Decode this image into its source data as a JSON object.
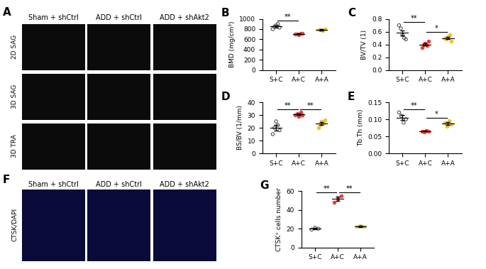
{
  "image_panels": [
    {
      "panel": "A",
      "columns": [
        "Sham + shCtrl",
        "ADD + shCtrl",
        "ADD + shAkt2"
      ],
      "rows": [
        "2D SAG",
        "3D SAG",
        "3D TRA"
      ]
    },
    {
      "panel": "F",
      "columns": [
        "Sham + shCtrl",
        "ADD + shCtrl",
        "ADD + shAkt2"
      ],
      "rows": [
        "CTSK/DAPI"
      ]
    }
  ],
  "chart_data": [
    {
      "type": "scatter",
      "panel": "B",
      "ylabel": "BMD (mg/cm³)",
      "categories": [
        "S+C",
        "A+C",
        "A+A"
      ],
      "values": [
        [
          800,
          850,
          870,
          900,
          830
        ],
        [
          700,
          700,
          690,
          710,
          720
        ],
        [
          780,
          790,
          770,
          800
        ]
      ],
      "means": [
        850,
        704,
        785
      ],
      "errors": [
        25,
        8,
        10
      ],
      "colors": [
        "#555555",
        "#e8403a",
        "#e8c531"
      ],
      "marker": "o",
      "ylim": [
        0,
        1000
      ],
      "yticks": [
        0,
        200,
        400,
        600,
        800,
        1000
      ],
      "significance": [
        {
          "between": [
            "S+C",
            "A+C"
          ],
          "label": "**"
        }
      ]
    },
    {
      "type": "scatter",
      "panel": "C",
      "ylabel": "BV/TV (1)",
      "categories": [
        "S+C",
        "A+C",
        "A+A"
      ],
      "values": [
        [
          0.7,
          0.65,
          0.55,
          0.5,
          0.48
        ],
        [
          0.35,
          0.4,
          0.42,
          0.38,
          0.45
        ],
        [
          0.5,
          0.48,
          0.52,
          0.55,
          0.45
        ]
      ],
      "means": [
        0.58,
        0.4,
        0.5
      ],
      "errors": [
        0.04,
        0.02,
        0.02
      ],
      "colors": [
        "#555555",
        "#e8403a",
        "#e8c531"
      ],
      "marker": "o",
      "ylim": [
        0,
        0.8
      ],
      "yticks": [
        {
          "value": 0,
          "label": "0.0"
        },
        0.2,
        0.4,
        0.6,
        0.8
      ],
      "significance": [
        {
          "between": [
            "S+C",
            "A+C"
          ],
          "label": "**"
        },
        {
          "between": [
            "A+C",
            "A+A"
          ],
          "label": "*"
        }
      ]
    },
    {
      "type": "scatter",
      "panel": "D",
      "ylabel": "BS/BV (1/mm)",
      "categories": [
        "S+C",
        "A+C",
        "A+A"
      ],
      "values": [
        [
          15,
          20,
          25,
          22,
          18
        ],
        [
          30,
          31,
          29,
          32,
          30
        ],
        [
          20,
          22,
          25,
          24,
          26
        ]
      ],
      "means": [
        20,
        30.4,
        23.4
      ],
      "errors": [
        2,
        0.6,
        1.2
      ],
      "colors": [
        "#555555",
        "#e8403a",
        "#e8c531"
      ],
      "marker": "o",
      "ylim": [
        0,
        40
      ],
      "yticks": [
        0,
        10,
        20,
        30,
        40
      ],
      "significance": [
        {
          "between": [
            "S+C",
            "A+C"
          ],
          "label": "**"
        },
        {
          "between": [
            "A+C",
            "A+A"
          ],
          "label": "**"
        }
      ]
    },
    {
      "type": "scatter",
      "panel": "E",
      "ylabel": "Tb.Th (mm)",
      "categories": [
        "S+C",
        "A+C",
        "A+A"
      ],
      "values": [
        [
          0.12,
          0.11,
          0.09,
          0.1
        ],
        [
          0.065,
          0.063,
          0.066,
          0.064
        ],
        [
          0.09,
          0.08,
          0.095,
          0.085
        ]
      ],
      "means": [
        0.105,
        0.065,
        0.088
      ],
      "errors": [
        0.007,
        0.001,
        0.004
      ],
      "colors": [
        "#555555",
        "#e8403a",
        "#e8c531"
      ],
      "marker": "o",
      "ylim": [
        0,
        0.15
      ],
      "yticks": [
        {
          "value": 0,
          "label": "0.00"
        },
        0.05,
        {
          "value": 0.1,
          "label": "0.10"
        },
        0.15
      ],
      "significance": [
        {
          "between": [
            "S+C",
            "A+C"
          ],
          "label": "**"
        },
        {
          "between": [
            "A+C",
            "A+A"
          ],
          "label": "*"
        }
      ]
    },
    {
      "type": "scatter",
      "panel": "G",
      "ylabel": "CTSK⁺ cells number",
      "categories": [
        "S+C",
        "A+C",
        "A+A"
      ],
      "values": [
        [
          19,
          21,
          20
        ],
        [
          48,
          52,
          55
        ],
        [
          22,
          23,
          22
        ]
      ],
      "means": [
        20,
        51.7,
        22.3
      ],
      "errors": [
        1,
        2,
        0.5
      ],
      "colors": [
        "#555555",
        "#e8403a",
        "#e8c531"
      ],
      "marker": "o",
      "ylim": [
        0,
        60
      ],
      "yticks": [
        0,
        20,
        40,
        60
      ],
      "significance": [
        {
          "between": [
            "S+C",
            "A+C"
          ],
          "label": "**"
        },
        {
          "between": [
            "A+C",
            "A+A"
          ],
          "label": "**"
        }
      ]
    }
  ]
}
